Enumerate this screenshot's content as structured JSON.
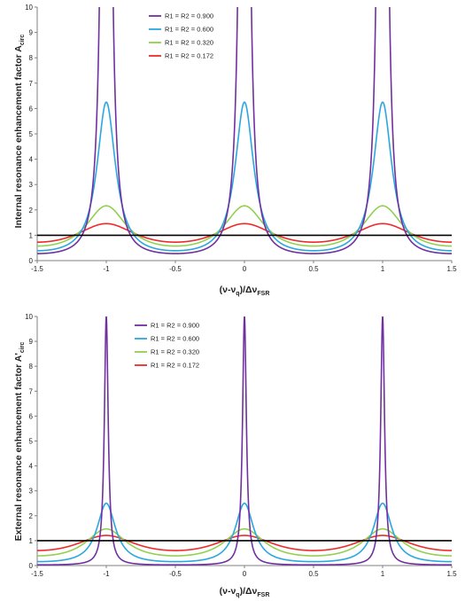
{
  "chart_data": [
    {
      "type": "line",
      "title": "",
      "ylabel": {
        "main": "Internal resonance enhancement factor A",
        "sub": "circ"
      },
      "xlabel": {
        "p1": "(ν-ν",
        "s1": "q",
        "p2": ")/Δν",
        "s2": "FSR"
      },
      "xlim": [
        -1.5,
        1.5
      ],
      "ylim": [
        0,
        10
      ],
      "x_ticks": [
        "-1.5",
        "-1",
        "-0.5",
        "0",
        "0.5",
        "1",
        "1.5"
      ],
      "y_ticks": [
        "0",
        "1",
        "2",
        "3",
        "4",
        "5",
        "6",
        "7",
        "8",
        "9",
        "10"
      ],
      "legend_position": "top-left",
      "formula": "1/(1 - 2 R cos(2πx) + R^2)",
      "reference_line": {
        "y": 1,
        "color": "#000000"
      },
      "series": [
        {
          "name": "R1 = R2 = 0.900",
          "R": 0.9,
          "color": "#7030a0"
        },
        {
          "name": "R1 = R2 = 0.600",
          "R": 0.6,
          "color": "#2aa7e0"
        },
        {
          "name": "R1 = R2 = 0.320",
          "R": 0.32,
          "color": "#92d050"
        },
        {
          "name": "R1 = R2 = 0.172",
          "R": 0.172,
          "color": "#ee2a2a"
        }
      ]
    },
    {
      "type": "line",
      "title": "",
      "ylabel": {
        "main": "External resonance enhancement factor A'",
        "sub": "circ"
      },
      "xlabel": {
        "p1": "(ν-ν",
        "s1": "q",
        "p2": ")/Δν",
        "s2": "FSR"
      },
      "xlim": [
        -1.5,
        1.5
      ],
      "ylim": [
        0,
        10
      ],
      "x_ticks": [
        "-1.5",
        "-1",
        "-0.5",
        "0",
        "0.5",
        "1",
        "1.5"
      ],
      "y_ticks": [
        "0",
        "1",
        "2",
        "3",
        "4",
        "5",
        "6",
        "7",
        "8",
        "9",
        "10"
      ],
      "legend_position": "top-left",
      "formula": "(1 - R)/(1 - 2 R cos(2πx) + R^2)",
      "reference_line": {
        "y": 1,
        "color": "#000000"
      },
      "series": [
        {
          "name": "R1 = R2 = 0.900",
          "R": 0.9,
          "color": "#7030a0"
        },
        {
          "name": "R1 = R2 = 0.600",
          "R": 0.6,
          "color": "#2aa7e0"
        },
        {
          "name": "R1 = R2 = 0.320",
          "R": 0.32,
          "color": "#92d050"
        },
        {
          "name": "R1 = R2 = 0.172",
          "R": 0.172,
          "color": "#ee2a2a"
        }
      ]
    }
  ]
}
